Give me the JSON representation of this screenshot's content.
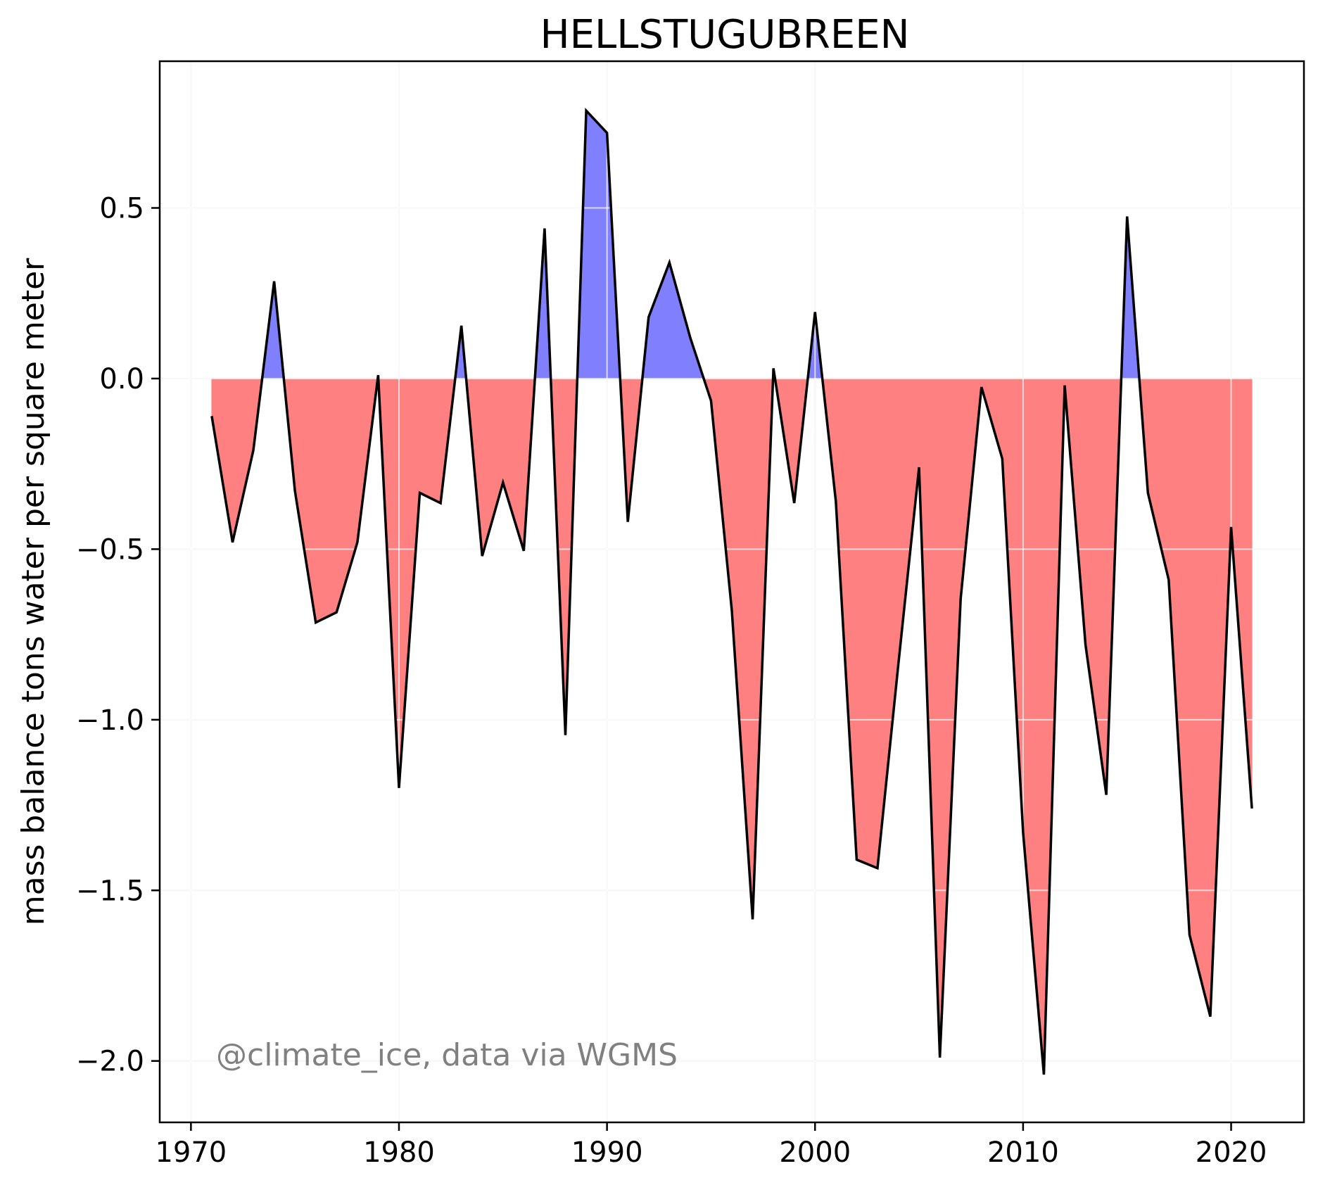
{
  "chart_data": {
    "type": "area",
    "title": "HELLSTUGUBREEN",
    "xlabel": "",
    "ylabel": "mass balance tons water per square meter",
    "annotation": "@climate_ice, data via WGMS",
    "xlim": [
      1968.5,
      2023.5
    ],
    "ylim": [
      -2.18,
      0.93
    ],
    "xticks": [
      1970,
      1980,
      1990,
      2000,
      2010,
      2020
    ],
    "xtick_labels": [
      "1970",
      "1980",
      "1990",
      "2000",
      "2010",
      "2020"
    ],
    "yticks": [
      0.5,
      0.0,
      -0.5,
      -1.0,
      -1.5,
      -2.0
    ],
    "ytick_labels": [
      "0.5",
      "0.0",
      "−0.5",
      "−1.0",
      "−1.5",
      "−2.0"
    ],
    "grid": true,
    "legend": "none",
    "colors": {
      "positive": "#8080ff",
      "negative": "#ff8080",
      "line": "#000000",
      "grid": "#e6e6e6",
      "annotation": "#808080"
    },
    "series": [
      {
        "x": [
          1971,
          1972,
          1973,
          1974,
          1975,
          1976,
          1977,
          1978,
          1979,
          1980,
          1981,
          1982,
          1983,
          1984,
          1985,
          1986,
          1987,
          1988,
          1989,
          1990,
          1991,
          1992,
          1993,
          1994,
          1995,
          1996,
          1997,
          1998,
          1999,
          2000,
          2001,
          2002,
          2003,
          2004,
          2005,
          2006,
          2007,
          2008,
          2009,
          2010,
          2011,
          2012,
          2013,
          2014,
          2015,
          2016,
          2017,
          2018,
          2019,
          2020,
          2021
        ],
        "values": [
          -0.11,
          -0.48,
          -0.21,
          0.285,
          -0.33,
          -0.715,
          -0.685,
          -0.48,
          0.01,
          -1.2,
          -0.335,
          -0.365,
          0.155,
          -0.52,
          -0.305,
          -0.505,
          0.44,
          -1.045,
          0.785,
          0.72,
          -0.42,
          0.18,
          0.34,
          0.12,
          -0.065,
          -0.68,
          -1.585,
          0.03,
          -0.365,
          0.195,
          -0.36,
          -1.41,
          -1.435,
          -0.84,
          -0.26,
          -1.99,
          -0.645,
          -0.025,
          -0.235,
          -1.33,
          -2.04,
          -0.02,
          -0.78,
          -1.22,
          0.475,
          -0.335,
          -0.59,
          -1.63,
          -1.87,
          -0.435,
          -1.26
        ]
      }
    ]
  }
}
